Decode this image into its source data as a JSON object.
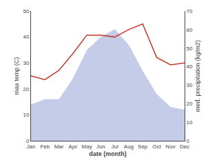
{
  "chart_data": {
    "type": "area",
    "xlabel": "date (month)",
    "ylabel": "max temp (C)",
    "y2label": "med. precipitation (kg/m2)",
    "categories": [
      "Jan",
      "Feb",
      "Mar",
      "Apr",
      "May",
      "Jun",
      "Jul",
      "Aug",
      "Sep",
      "Oct",
      "Nov",
      "Dec"
    ],
    "series": [
      {
        "type": "area",
        "color": "#c5cce8",
        "values": [
          14,
          16,
          16,
          24,
          35,
          40,
          43,
          37,
          27,
          18,
          13,
          12
        ]
      },
      {
        "type": "line",
        "color": "#c0392b",
        "axis": "y2",
        "values": [
          35,
          33,
          38,
          47,
          57,
          57,
          56,
          60,
          63,
          45,
          41,
          42
        ]
      }
    ],
    "ylim": [
      0,
      50
    ],
    "yticks": [
      0,
      10,
      20,
      30,
      40,
      50
    ],
    "y2lim": [
      0,
      70
    ],
    "y2ticks": [
      0,
      10,
      20,
      30,
      40,
      50,
      60,
      70
    ],
    "grid": false
  }
}
